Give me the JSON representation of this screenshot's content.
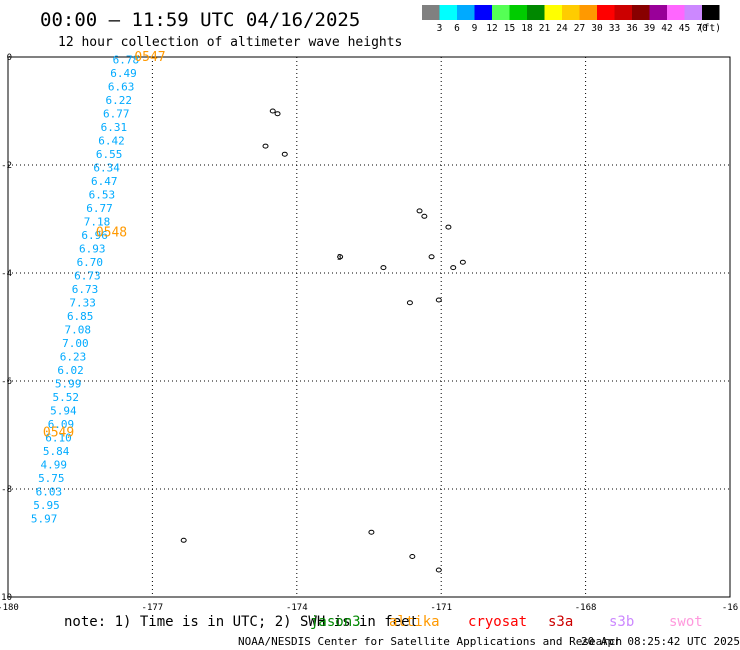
{
  "header": {
    "title": "00:00 – 11:59 UTC 04/16/2025",
    "subtitle": "12 hour collection of altimeter wave heights"
  },
  "legend": {
    "colors": [
      "#808080",
      "#00ffff",
      "#00aaff",
      "#0000ff",
      "#55ff55",
      "#00cc00",
      "#008800",
      "#ffff00",
      "#ffcc00",
      "#ff9900",
      "#ff0000",
      "#cc0000",
      "#880000",
      "#990099",
      "#ff66ff",
      "#cc88ff",
      "#000000"
    ],
    "labels": [
      "3",
      "6",
      "9",
      "12",
      "15",
      "18",
      "21",
      "24",
      "27",
      "30",
      "33",
      "36",
      "39",
      "42",
      "45",
      "70",
      "(ft)"
    ]
  },
  "map": {
    "lon_min": -180,
    "lon_max": -165,
    "lat_min": -10,
    "lat_max": 0,
    "x_ticks": [
      "-180",
      "-177",
      "-174",
      "-171",
      "-168",
      "-16"
    ],
    "y_ticks": [
      "0",
      "-2",
      "-4",
      "-6",
      "-8",
      "-10"
    ],
    "track_color": "#00aaff",
    "time_color": "#ff9900",
    "track": [
      {
        "lon": -177.55,
        "lat": -0.05,
        "v": "6.78"
      },
      {
        "lon": -177.6,
        "lat": -0.3,
        "v": "6.49"
      },
      {
        "lon": -177.65,
        "lat": -0.55,
        "v": "6.63"
      },
      {
        "lon": -177.7,
        "lat": -0.8,
        "v": "6.22"
      },
      {
        "lon": -177.75,
        "lat": -1.05,
        "v": "6.77"
      },
      {
        "lon": -177.8,
        "lat": -1.3,
        "v": "6.31"
      },
      {
        "lon": -177.85,
        "lat": -1.55,
        "v": "6.42"
      },
      {
        "lon": -177.9,
        "lat": -1.8,
        "v": "6.55"
      },
      {
        "lon": -177.95,
        "lat": -2.05,
        "v": "6.34"
      },
      {
        "lon": -178.0,
        "lat": -2.3,
        "v": "6.47"
      },
      {
        "lon": -178.05,
        "lat": -2.55,
        "v": "6.53"
      },
      {
        "lon": -178.1,
        "lat": -2.8,
        "v": "6.77"
      },
      {
        "lon": -178.15,
        "lat": -3.05,
        "v": "7.18"
      },
      {
        "lon": -178.2,
        "lat": -3.3,
        "v": "6.96"
      },
      {
        "lon": -178.25,
        "lat": -3.55,
        "v": "6.93"
      },
      {
        "lon": -178.3,
        "lat": -3.8,
        "v": "6.70"
      },
      {
        "lon": -178.35,
        "lat": -4.05,
        "v": "6.73"
      },
      {
        "lon": -178.4,
        "lat": -4.3,
        "v": "6.73"
      },
      {
        "lon": -178.45,
        "lat": -4.55,
        "v": "7.33"
      },
      {
        "lon": -178.5,
        "lat": -4.8,
        "v": "6.85"
      },
      {
        "lon": -178.55,
        "lat": -5.05,
        "v": "7.08"
      },
      {
        "lon": -178.6,
        "lat": -5.3,
        "v": "7.00"
      },
      {
        "lon": -178.65,
        "lat": -5.55,
        "v": "6.23"
      },
      {
        "lon": -178.7,
        "lat": -5.8,
        "v": "6.02"
      },
      {
        "lon": -178.75,
        "lat": -6.05,
        "v": "5.99"
      },
      {
        "lon": -178.8,
        "lat": -6.3,
        "v": "5.52"
      },
      {
        "lon": -178.85,
        "lat": -6.55,
        "v": "5.94"
      },
      {
        "lon": -178.9,
        "lat": -6.8,
        "v": "6.09"
      },
      {
        "lon": -178.95,
        "lat": -7.05,
        "v": "6.10"
      },
      {
        "lon": -179.0,
        "lat": -7.3,
        "v": "5.84"
      },
      {
        "lon": -179.05,
        "lat": -7.55,
        "v": "4.99"
      },
      {
        "lon": -179.1,
        "lat": -7.8,
        "v": "5.75"
      },
      {
        "lon": -179.15,
        "lat": -8.05,
        "v": "6.03"
      },
      {
        "lon": -179.2,
        "lat": -8.3,
        "v": "5.95"
      },
      {
        "lon": -179.25,
        "lat": -8.55,
        "v": "5.97"
      }
    ],
    "times": [
      {
        "lon": -177.05,
        "lat": 0.0,
        "t": "0547"
      },
      {
        "lon": -177.85,
        "lat": -3.25,
        "t": "0548"
      },
      {
        "lon": -178.95,
        "lat": -6.95,
        "t": "0549"
      }
    ],
    "islands": [
      {
        "lon": -174.5,
        "lat": -1.0
      },
      {
        "lon": -174.4,
        "lat": -1.05
      },
      {
        "lon": -174.65,
        "lat": -1.65
      },
      {
        "lon": -174.25,
        "lat": -1.8
      },
      {
        "lon": -171.45,
        "lat": -2.85
      },
      {
        "lon": -171.35,
        "lat": -2.95
      },
      {
        "lon": -170.85,
        "lat": -3.15
      },
      {
        "lon": -171.2,
        "lat": -3.7
      },
      {
        "lon": -170.75,
        "lat": -3.9
      },
      {
        "lon": -170.55,
        "lat": -3.8
      },
      {
        "lon": -173.1,
        "lat": -3.7
      },
      {
        "lon": -172.2,
        "lat": -3.9
      },
      {
        "lon": -171.65,
        "lat": -4.55
      },
      {
        "lon": -171.05,
        "lat": -4.5
      },
      {
        "lon": -176.35,
        "lat": -8.95
      },
      {
        "lon": -172.45,
        "lat": -8.8
      },
      {
        "lon": -171.6,
        "lat": -9.25
      },
      {
        "lon": -171.05,
        "lat": -9.5
      }
    ],
    "island_label": "3"
  },
  "footer": {
    "note_prefix": "note:  1) Time is in UTC; 2) SWH is in feet",
    "sat_jason": "jason3",
    "sat_altika": "altika",
    "sat_cryosat": "cryosat",
    "sat_s3a": "s3a",
    "sat_s3b": "s3b",
    "sat_swot": "swot",
    "credit": "NOAA/NESDIS Center for Satellite Applications and Research",
    "timestamp": "20 Apr 08:25:42 UTC 2025"
  },
  "colors": {
    "jason": "#008800",
    "altika": "#ff9900",
    "cryosat": "#ff0000",
    "s3a": "#cc0000",
    "s3b": "#cc88ff",
    "swot": "#ff99dd"
  }
}
